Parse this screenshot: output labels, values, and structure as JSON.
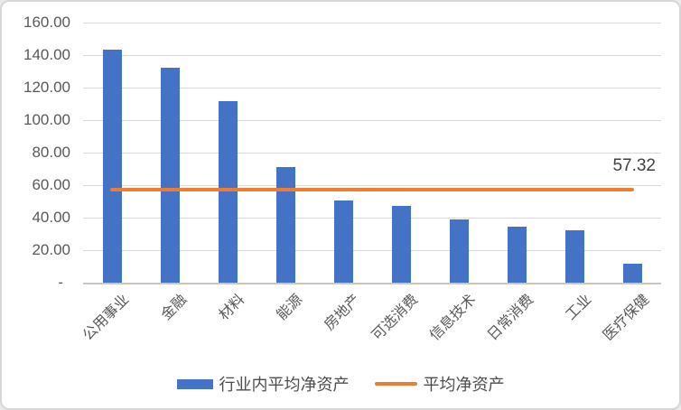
{
  "chart_data": {
    "type": "bar",
    "title": "",
    "categories": [
      "公用事业",
      "金融",
      "材料",
      "能源",
      "房地产",
      "可选消费",
      "信息技术",
      "日常消费",
      "工业",
      "医疗保健"
    ],
    "series": [
      {
        "name": "行业内平均净资产",
        "type": "bar",
        "color": "#4472C4",
        "values": [
          143.5,
          132.5,
          111.5,
          71.2,
          50.5,
          47.0,
          39.0,
          34.5,
          32.0,
          11.5
        ]
      },
      {
        "name": "平均净资产",
        "type": "line",
        "color": "#ED7D31",
        "value": 57.32,
        "label": "57.32"
      }
    ],
    "ylim": [
      0,
      160
    ],
    "y_axis": {
      "max": 160,
      "ticks": [
        {
          "value": 160,
          "label": "160.00"
        },
        {
          "value": 140,
          "label": "140.00"
        },
        {
          "value": 120,
          "label": "120.00"
        },
        {
          "value": 100,
          "label": "100.00"
        },
        {
          "value": 80,
          "label": "80.00"
        },
        {
          "value": 60,
          "label": "60.00"
        },
        {
          "value": 40,
          "label": "40.00"
        },
        {
          "value": 20,
          "label": "20.00"
        },
        {
          "value": 0,
          "label": "-"
        }
      ]
    },
    "grid": true,
    "legend_position": "bottom"
  },
  "legend": {
    "bar_label": "行业内平均净资产",
    "line_label": "平均净资产"
  },
  "colors": {
    "bar": "#4472C4",
    "line": "#ED7D31",
    "grid": "#D9D9D9",
    "axis_text": "#595959"
  }
}
